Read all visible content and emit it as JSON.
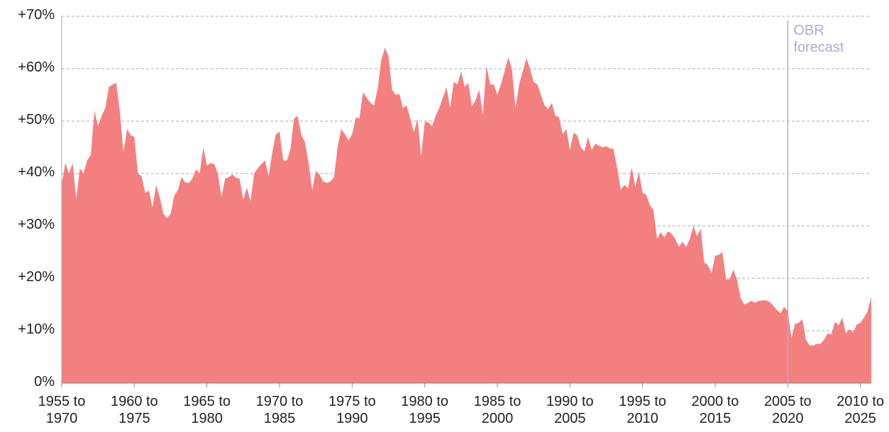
{
  "chart_data": {
    "type": "area",
    "x": [
      1955,
      1955.25,
      1955.5,
      1955.75,
      1956,
      1956.25,
      1956.5,
      1956.75,
      1957,
      1957.25,
      1957.5,
      1957.75,
      1958,
      1958.25,
      1958.5,
      1958.75,
      1959,
      1959.25,
      1959.5,
      1959.75,
      1960,
      1960.25,
      1960.5,
      1960.75,
      1961,
      1961.25,
      1961.5,
      1961.75,
      1962,
      1962.25,
      1962.5,
      1962.75,
      1963,
      1963.25,
      1963.5,
      1963.75,
      1964,
      1964.25,
      1964.5,
      1964.75,
      1965,
      1965.25,
      1965.5,
      1965.75,
      1966,
      1966.25,
      1966.5,
      1966.75,
      1967,
      1967.25,
      1967.5,
      1967.75,
      1968,
      1968.25,
      1968.5,
      1968.75,
      1969,
      1969.25,
      1969.5,
      1969.75,
      1970,
      1970.25,
      1970.5,
      1970.75,
      1971,
      1971.25,
      1971.5,
      1971.75,
      1972,
      1972.25,
      1972.5,
      1972.75,
      1973,
      1973.25,
      1973.5,
      1973.75,
      1974,
      1974.25,
      1974.5,
      1974.75,
      1975,
      1975.25,
      1975.5,
      1975.75,
      1976,
      1976.25,
      1976.5,
      1976.75,
      1977,
      1977.25,
      1977.5,
      1977.75,
      1978,
      1978.25,
      1978.5,
      1978.75,
      1979,
      1979.25,
      1979.5,
      1979.75,
      1980,
      1980.25,
      1980.5,
      1980.75,
      1981,
      1981.25,
      1981.5,
      1981.75,
      1982,
      1982.25,
      1982.5,
      1982.75,
      1983,
      1983.25,
      1983.5,
      1983.75,
      1984,
      1984.25,
      1984.5,
      1984.75,
      1985,
      1985.25,
      1985.5,
      1985.75,
      1986,
      1986.25,
      1986.5,
      1986.75,
      1987,
      1987.25,
      1987.5,
      1987.75,
      1988,
      1988.25,
      1988.5,
      1988.75,
      1989,
      1989.25,
      1989.5,
      1989.75,
      1990,
      1990.25,
      1990.5,
      1990.75,
      1991,
      1991.25,
      1991.5,
      1991.75,
      1992,
      1992.25,
      1992.5,
      1992.75,
      1993,
      1993.25,
      1993.5,
      1993.75,
      1994,
      1994.25,
      1994.5,
      1994.75,
      1995,
      1995.25,
      1995.5,
      1995.75,
      1996,
      1996.25,
      1996.5,
      1996.75,
      1997,
      1997.25,
      1997.5,
      1997.75,
      1998,
      1998.25,
      1998.5,
      1998.75,
      1999,
      1999.25,
      1999.5,
      1999.75,
      2000,
      2000.25,
      2000.5,
      2000.75,
      2001,
      2001.25,
      2001.5,
      2001.75,
      2002,
      2002.25,
      2002.5,
      2002.75,
      2003,
      2003.25,
      2003.5,
      2003.75,
      2004,
      2004.25,
      2004.5,
      2004.75,
      2005,
      2005.25,
      2005.5,
      2005.75,
      2006,
      2006.25,
      2006.5,
      2006.75,
      2007,
      2007.25,
      2007.5,
      2007.75,
      2008,
      2008.25,
      2008.5,
      2008.75,
      2009,
      2009.25,
      2009.5,
      2009.75,
      2010,
      2010.25,
      2010.5,
      2010.75
    ],
    "values": [
      38,
      42,
      40,
      42,
      35,
      41,
      40,
      42.5,
      43.5,
      52,
      49,
      51,
      52.5,
      56.5,
      57,
      57.3,
      52,
      44,
      48.5,
      47.3,
      47,
      40,
      39.5,
      36.3,
      36.7,
      33.5,
      37.8,
      35.5,
      32.3,
      31.5,
      32.3,
      35.8,
      36.8,
      39.3,
      38.3,
      38.2,
      39,
      40.8,
      40,
      45,
      41.5,
      42,
      41.8,
      40,
      35.5,
      39,
      39.3,
      39.8,
      39.2,
      39,
      35,
      37.3,
      34.7,
      40,
      41,
      41.8,
      42.5,
      39.5,
      44,
      47.5,
      48,
      42.5,
      42.5,
      44.5,
      50.5,
      51,
      47.3,
      46,
      42,
      36.8,
      40.5,
      39.8,
      38.5,
      38.2,
      38.5,
      39.3,
      45,
      48.5,
      47.5,
      46.3,
      47.5,
      50.7,
      50.5,
      55.5,
      54.5,
      53.5,
      53,
      56,
      61.5,
      64,
      62.5,
      56,
      55,
      55.2,
      52.5,
      53,
      50.5,
      47.8,
      50.5,
      43.3,
      49.8,
      49.8,
      49,
      51,
      52.5,
      54.5,
      56.5,
      52.5,
      57.5,
      57,
      59.5,
      56.5,
      57.3,
      52.8,
      54,
      56,
      51.2,
      60.5,
      57,
      57,
      55,
      57,
      59.5,
      62.2,
      60,
      52.5,
      57,
      59.5,
      62,
      60,
      57.5,
      57,
      55,
      53,
      52.3,
      53.5,
      51,
      50.8,
      47.5,
      48.5,
      44.5,
      47.8,
      47.3,
      45,
      44.2,
      47,
      44.5,
      45.7,
      45.3,
      45,
      45.2,
      44.8,
      44.7,
      41,
      37,
      37.8,
      37.2,
      41.2,
      37.5,
      40.3,
      36.3,
      36,
      34,
      33,
      27.5,
      28.8,
      27.8,
      29,
      28.5,
      27.5,
      26,
      27,
      26,
      27.5,
      30,
      28,
      29.5,
      23,
      22.5,
      21,
      24.3,
      24.5,
      25,
      19.8,
      19.8,
      21.7,
      19.8,
      16.3,
      15,
      15.3,
      15.7,
      15.3,
      15.7,
      15.8,
      15.8,
      15.5,
      14.8,
      14,
      13.3,
      14.6,
      13.7,
      8.5,
      11.3,
      11.5,
      12.2,
      8.3,
      7.2,
      7.2,
      7.5,
      7.5,
      8.3,
      9.5,
      9.3,
      11.7,
      11,
      12.5,
      9.5,
      10.3,
      9.7,
      11.2,
      11.5,
      12.5,
      13.7,
      16.5
    ],
    "color": "#f47f7f",
    "xlim": [
      1955,
      2010.75
    ],
    "xticks": [
      {
        "value": 1955,
        "label": "1955 to 1970"
      },
      {
        "value": 1960,
        "label": "1960 to 1975"
      },
      {
        "value": 1965,
        "label": "1965 to 1980"
      },
      {
        "value": 1970,
        "label": "1970 to 1985"
      },
      {
        "value": 1975,
        "label": "1975 to 1990"
      },
      {
        "value": 1980,
        "label": "1980 to 1995"
      },
      {
        "value": 1985,
        "label": "1985 to 2000"
      },
      {
        "value": 1990,
        "label": "1990 to 2005"
      },
      {
        "value": 1995,
        "label": "1995 to 2010"
      },
      {
        "value": 2000,
        "label": "2000 to 2015"
      },
      {
        "value": 2005,
        "label": "2005 to 2020"
      },
      {
        "value": 2010,
        "label": "2010 to 2025"
      }
    ],
    "ylim": [
      0,
      70
    ],
    "yticks": [
      {
        "value": 0,
        "label": "0%"
      },
      {
        "value": 10,
        "label": "+10%"
      },
      {
        "value": 20,
        "label": "+20%"
      },
      {
        "value": 30,
        "label": "+30%"
      },
      {
        "value": 40,
        "label": "+40%"
      },
      {
        "value": 50,
        "label": "+50%"
      },
      {
        "value": 60,
        "label": "+60%"
      },
      {
        "value": 70,
        "label": "+70%"
      }
    ],
    "grid": true,
    "annotation": {
      "x": 2005,
      "text": "OBR forecast",
      "color": "#b3a6e0"
    }
  }
}
